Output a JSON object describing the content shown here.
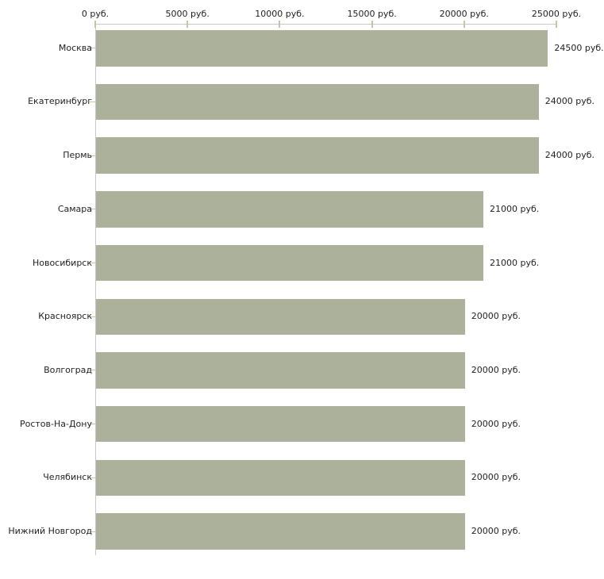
{
  "chart_data": {
    "type": "bar",
    "orientation": "horizontal",
    "title": "",
    "xlabel": "",
    "ylabel": "",
    "grid": false,
    "legend": false,
    "categories": [
      "Москва",
      "Екатеринбург",
      "Пермь",
      "Самара",
      "Новосибирск",
      "Красноярск",
      "Волгоград",
      "Ростов-На-Дону",
      "Челябинск",
      "Нижний Новгород"
    ],
    "values": [
      24500,
      24000,
      24000,
      21000,
      21000,
      20000,
      20000,
      20000,
      20000,
      20000
    ],
    "value_labels": [
      "24500 руб.",
      "24000 руб.",
      "24000 руб.",
      "21000 руб.",
      "21000 руб.",
      "20000 руб.",
      "20000 руб.",
      "20000 руб.",
      "20000 руб.",
      "20000 руб."
    ],
    "x_axis": {
      "position": "top",
      "min": 0,
      "max": 25000,
      "ticks": [
        0,
        5000,
        10000,
        15000,
        20000,
        25000
      ],
      "tick_labels": [
        "0 руб.",
        "5000 руб.",
        "10000 руб.",
        "15000 руб.",
        "20000 руб.",
        "25000 руб."
      ]
    }
  },
  "colors": {
    "bar": "#abb19a",
    "tick": "#c6c79e",
    "axis_line": "#c8c8c8",
    "text": "#1f1f1f",
    "background": "#ffffff"
  }
}
